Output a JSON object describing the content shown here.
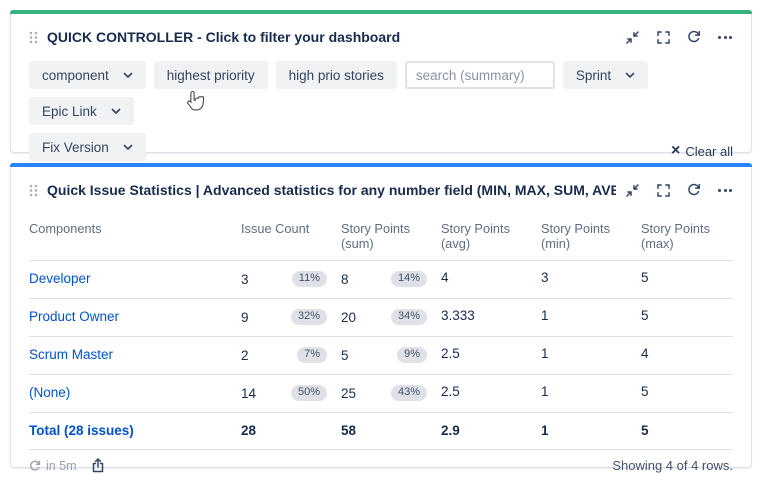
{
  "colors": {
    "controller_accent": "#36B37E",
    "stats_accent": "#2684FF",
    "link_blue": "#0052CC",
    "bar_fill": "#42526E",
    "bar_track": "#DFE1E6",
    "badge_bg": "#DFE1E6",
    "panel_border": "#DFE1E6",
    "title_text": "#172B4D",
    "header_text": "#5E6C84"
  },
  "icons": {
    "drag_handle": "six-dot grid",
    "collapse": "diagonal inward arrows",
    "fullscreen": "corner brackets",
    "refresh": "circular arrows",
    "more": "ellipsis dots",
    "clear_x": "×",
    "chevron_down": "v",
    "share": "box with up arrow"
  },
  "controller": {
    "title": "QUICK CONTROLLER - Click to filter your dashboard",
    "filters": {
      "component": "component",
      "highest_priority": "highest priority",
      "high_prio_stories": "high prio stories",
      "search_placeholder": "search (summary)",
      "sprint": "Sprint",
      "epic_link": "Epic Link",
      "fix_version": "Fix Version"
    },
    "clear_all": "Clear all"
  },
  "stats": {
    "title": "Quick Issue Statistics | Advanced statistics for any number field (MIN, MAX, SUM, AVE...",
    "table": {
      "columns": [
        "Components",
        "Issue Count",
        "Story Points (sum)",
        "Story Points (avg)",
        "Story Points (min)",
        "Story Points (max)"
      ],
      "rows": [
        {
          "component": "Developer",
          "issue_count": "3",
          "issue_pct": "11%",
          "sum": "8",
          "sum_pct": "14%",
          "avg": "4",
          "min": "3",
          "max": "5"
        },
        {
          "component": "Product Owner",
          "issue_count": "9",
          "issue_pct": "32%",
          "sum": "20",
          "sum_pct": "34%",
          "avg": "3.333",
          "min": "1",
          "max": "5"
        },
        {
          "component": "Scrum Master",
          "issue_count": "2",
          "issue_pct": "7%",
          "sum": "5",
          "sum_pct": "9%",
          "avg": "2.5",
          "min": "1",
          "max": "4"
        },
        {
          "component": "(None)",
          "issue_count": "14",
          "issue_pct": "50%",
          "sum": "25",
          "sum_pct": "43%",
          "avg": "2.5",
          "min": "1",
          "max": "5"
        }
      ],
      "total": {
        "label": "Total (28 issues)",
        "issue_count": "28",
        "sum": "58",
        "avg": "2.9",
        "min": "1",
        "max": "5"
      }
    },
    "footer": {
      "refresh_in": "in 5m",
      "showing": "Showing 4 of 4 rows."
    }
  }
}
